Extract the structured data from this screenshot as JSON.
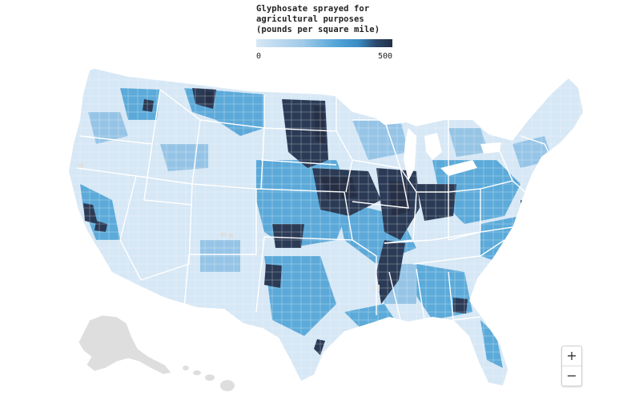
{
  "legend": {
    "title": "Glyphosate sprayed for agricultural purposes (pounds per square mile)",
    "min_label": "0",
    "max_label": "500",
    "scale_colors": [
      "#d6e7f5",
      "#9ec9e8",
      "#4fa3d6",
      "#3a8cc4",
      "#2b4a6e",
      "#262f45"
    ]
  },
  "zoom": {
    "in_label": "+",
    "out_label": "−"
  },
  "colors": {
    "very_low": "#d6e7f5",
    "low": "#a8cfec",
    "medium": "#4fa3d6",
    "high": "#2c5f8f",
    "very_high": "#262f45",
    "no_data": "#dedede",
    "border": "#ffffff"
  }
}
